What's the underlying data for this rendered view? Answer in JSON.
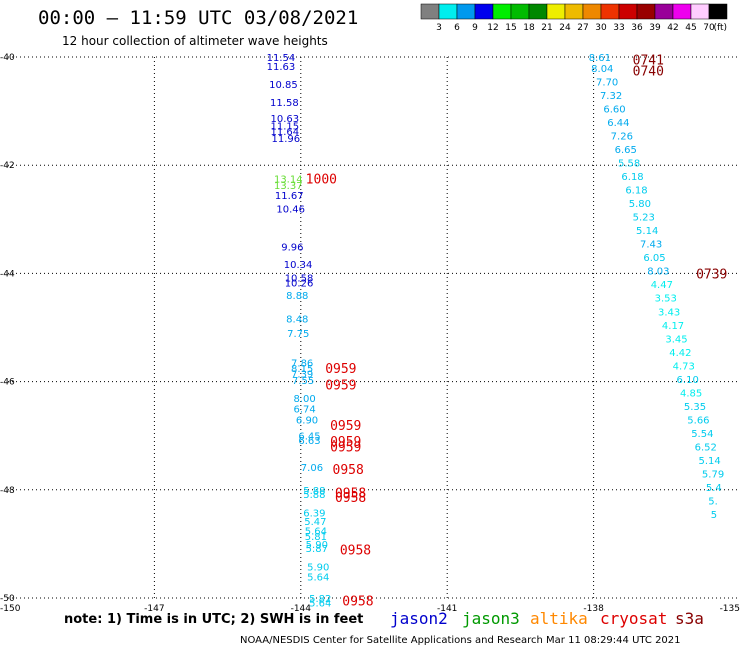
{
  "header": {
    "title": "00:00 – 11:59 UTC 03/08/2021",
    "subtitle": "12 hour collection of altimeter wave heights"
  },
  "footer": {
    "note": "note: 1) Time is in UTC; 2) SWH is in feet",
    "credit": "NOAA/NESDIS Center for Satellite Applications and Research   Mar 11 08:29:44 UTC 2021"
  },
  "satellites": [
    {
      "name": "jason2",
      "color": "#0000cc"
    },
    {
      "name": "jason3",
      "color": "#009900"
    },
    {
      "name": "altika",
      "color": "#ff8800"
    },
    {
      "name": "cryosat",
      "color": "#dd0000"
    },
    {
      "name": "s3a",
      "color": "#880000"
    }
  ],
  "colorbar": {
    "swatches": [
      "#808080",
      "#00eeee",
      "#0099ee",
      "#0000ee",
      "#00ee00",
      "#00bb00",
      "#008800",
      "#eeee00",
      "#eebb00",
      "#ee8800",
      "#ee3300",
      "#cc0000",
      "#990000",
      "#990099",
      "#ee00ee",
      "#ffccff",
      "#000000"
    ],
    "labels": [
      "3",
      "6",
      "9",
      "12",
      "15",
      "18",
      "21",
      "24",
      "27",
      "30",
      "33",
      "36",
      "39",
      "42",
      "45",
      "70"
    ],
    "unit": "(ft)"
  },
  "chart_data": {
    "type": "scatter",
    "title": "00:00 – 11:59 UTC 03/08/2021",
    "xlim": [
      -150,
      -135
    ],
    "ylim": [
      -50,
      -40
    ],
    "x_ticks": [
      "-150",
      "-147",
      "-144",
      "-141",
      "-138",
      "-135"
    ],
    "y_ticks": [
      "-40",
      "-42",
      "-44",
      "-46",
      "-48",
      "-50"
    ],
    "grid": true,
    "legend": "bottom",
    "points": [
      {
        "x": -144.7,
        "y": -40.0,
        "label": "11.54",
        "color": "#0000cc"
      },
      {
        "x": -144.7,
        "y": -40.17,
        "label": "11.63",
        "color": "#0000cc"
      },
      {
        "x": -144.65,
        "y": -40.5,
        "label": "10.85",
        "color": "#0000cc"
      },
      {
        "x": -144.63,
        "y": -40.83,
        "label": "11.58",
        "color": "#0000cc"
      },
      {
        "x": -144.62,
        "y": -41.13,
        "label": "10.63",
        "color": "#0000cc"
      },
      {
        "x": -144.62,
        "y": -41.27,
        "label": "11.15",
        "color": "#0000cc"
      },
      {
        "x": -144.62,
        "y": -41.37,
        "label": "11.64",
        "color": "#0000cc"
      },
      {
        "x": -144.6,
        "y": -41.5,
        "label": "11.96",
        "color": "#0000cc"
      },
      {
        "x": -144.55,
        "y": -42.25,
        "label": "13.14",
        "color": "#66dd33"
      },
      {
        "x": -144.55,
        "y": -42.37,
        "label": "13.37",
        "color": "#66dd33"
      },
      {
        "x": -144.53,
        "y": -42.55,
        "label": "11.67",
        "color": "#0000cc"
      },
      {
        "x": -144.5,
        "y": -42.8,
        "label": "10.46",
        "color": "#0000cc"
      },
      {
        "x": -144.4,
        "y": -43.5,
        "label": "9.96",
        "color": "#0000cc"
      },
      {
        "x": -144.35,
        "y": -43.83,
        "label": "10.34",
        "color": "#0000cc"
      },
      {
        "x": -144.33,
        "y": -44.08,
        "label": "10.58",
        "color": "#0000cc"
      },
      {
        "x": -144.33,
        "y": -44.17,
        "label": "10.26",
        "color": "#0000cc"
      },
      {
        "x": -144.3,
        "y": -44.4,
        "label": "8.88",
        "color": "#00aaee"
      },
      {
        "x": -144.3,
        "y": -44.83,
        "label": "8.48",
        "color": "#00aaee"
      },
      {
        "x": -144.28,
        "y": -45.1,
        "label": "7.75",
        "color": "#00aaee"
      },
      {
        "x": -144.2,
        "y": -45.65,
        "label": "7.86",
        "color": "#00aaee"
      },
      {
        "x": -144.2,
        "y": -45.75,
        "label": "8.15",
        "color": "#00aaee"
      },
      {
        "x": -144.2,
        "y": -45.85,
        "label": "7.39",
        "color": "#00aaee"
      },
      {
        "x": -144.18,
        "y": -45.97,
        "label": "7.55",
        "color": "#00aaee"
      },
      {
        "x": -144.15,
        "y": -46.3,
        "label": "8.00",
        "color": "#00aaee"
      },
      {
        "x": -144.15,
        "y": -46.5,
        "label": "6.74",
        "color": "#00aaee"
      },
      {
        "x": -144.1,
        "y": -46.7,
        "label": "6.90",
        "color": "#00aaee"
      },
      {
        "x": -144.05,
        "y": -47.0,
        "label": "6.45",
        "color": "#00aaee"
      },
      {
        "x": -144.05,
        "y": -47.08,
        "label": "6.63",
        "color": "#00aaee"
      },
      {
        "x": -144.0,
        "y": -47.58,
        "label": "7.06",
        "color": "#00aaee"
      },
      {
        "x": -143.95,
        "y": -48.0,
        "label": "5.88",
        "color": "#00ccee"
      },
      {
        "x": -143.95,
        "y": -48.08,
        "label": "5.88",
        "color": "#00ccee"
      },
      {
        "x": -143.95,
        "y": -48.42,
        "label": "6.39",
        "color": "#00ccee"
      },
      {
        "x": -143.93,
        "y": -48.58,
        "label": "5.47",
        "color": "#00ccee"
      },
      {
        "x": -143.92,
        "y": -48.75,
        "label": "5.64",
        "color": "#00ccee"
      },
      {
        "x": -143.92,
        "y": -48.85,
        "label": "5.81",
        "color": "#00ccee"
      },
      {
        "x": -143.9,
        "y": -49.0,
        "label": "5.90",
        "color": "#00ccee"
      },
      {
        "x": -143.9,
        "y": -49.08,
        "label": "5.87",
        "color": "#00ccee"
      },
      {
        "x": -143.87,
        "y": -49.42,
        "label": "5.90",
        "color": "#00ccee"
      },
      {
        "x": -143.87,
        "y": -49.6,
        "label": "5.64",
        "color": "#00ccee"
      },
      {
        "x": -143.83,
        "y": -50.0,
        "label": "5.82",
        "color": "#00ccee"
      },
      {
        "x": -143.83,
        "y": -50.08,
        "label": "5.64",
        "color": "#00ccee"
      },
      {
        "x": -143.8,
        "y": -50.42,
        "label": "5.93",
        "color": "#00ccee"
      },
      {
        "x": -143.8,
        "y": -50.58,
        "label": "6.32",
        "color": "#00ccee"
      },
      {
        "x": -138.1,
        "y": -40.0,
        "label": "8.61",
        "color": "#00aaee"
      },
      {
        "x": -138.05,
        "y": -40.2,
        "label": "8.04",
        "color": "#00aaee"
      },
      {
        "x": -137.95,
        "y": -40.45,
        "label": "7.70",
        "color": "#00aaee"
      },
      {
        "x": -137.87,
        "y": -40.7,
        "label": "7.32",
        "color": "#00aaee"
      },
      {
        "x": -137.8,
        "y": -40.95,
        "label": "6.60",
        "color": "#00aaee"
      },
      {
        "x": -137.72,
        "y": -41.2,
        "label": "6.44",
        "color": "#00aaee"
      },
      {
        "x": -137.65,
        "y": -41.45,
        "label": "7.26",
        "color": "#00aaee"
      },
      {
        "x": -137.57,
        "y": -41.7,
        "label": "6.65",
        "color": "#00aaee"
      },
      {
        "x": -137.5,
        "y": -41.95,
        "label": "5.58",
        "color": "#00ccee"
      },
      {
        "x": -137.43,
        "y": -42.2,
        "label": "6.18",
        "color": "#00ccee"
      },
      {
        "x": -137.35,
        "y": -42.45,
        "label": "6.18",
        "color": "#00ccee"
      },
      {
        "x": -137.28,
        "y": -42.7,
        "label": "5.80",
        "color": "#00ccee"
      },
      {
        "x": -137.2,
        "y": -42.95,
        "label": "5.23",
        "color": "#00ccee"
      },
      {
        "x": -137.13,
        "y": -43.2,
        "label": "5.14",
        "color": "#00ccee"
      },
      {
        "x": -137.05,
        "y": -43.45,
        "label": "7.43",
        "color": "#00aaee"
      },
      {
        "x": -136.98,
        "y": -43.7,
        "label": "6.05",
        "color": "#00ccee"
      },
      {
        "x": -136.9,
        "y": -43.95,
        "label": "8.03",
        "color": "#00aaee"
      },
      {
        "x": -136.83,
        "y": -44.2,
        "label": "4.47",
        "color": "#00eeee"
      },
      {
        "x": -136.75,
        "y": -44.45,
        "label": "3.53",
        "color": "#00eeee"
      },
      {
        "x": -136.68,
        "y": -44.7,
        "label": "3.43",
        "color": "#00eeee"
      },
      {
        "x": -136.6,
        "y": -44.95,
        "label": "4.17",
        "color": "#00eeee"
      },
      {
        "x": -136.53,
        "y": -45.2,
        "label": "3.45",
        "color": "#00eeee"
      },
      {
        "x": -136.45,
        "y": -45.45,
        "label": "4.42",
        "color": "#00eeee"
      },
      {
        "x": -136.38,
        "y": -45.7,
        "label": "4.73",
        "color": "#00eeee"
      },
      {
        "x": -136.3,
        "y": -45.95,
        "label": "6.10",
        "color": "#00ccee"
      },
      {
        "x": -136.23,
        "y": -46.2,
        "label": "4.85",
        "color": "#00eeee"
      },
      {
        "x": -136.15,
        "y": -46.45,
        "label": "5.35",
        "color": "#00ccee"
      },
      {
        "x": -136.08,
        "y": -46.7,
        "label": "5.66",
        "color": "#00ccee"
      },
      {
        "x": -136.0,
        "y": -46.95,
        "label": "5.54",
        "color": "#00ccee"
      },
      {
        "x": -135.93,
        "y": -47.2,
        "label": "6.52",
        "color": "#00ccee"
      },
      {
        "x": -135.85,
        "y": -47.45,
        "label": "5.14",
        "color": "#00ccee"
      },
      {
        "x": -135.78,
        "y": -47.7,
        "label": "5.79",
        "color": "#00ccee"
      },
      {
        "x": -135.7,
        "y": -47.95,
        "label": "5.4",
        "color": "#00ccee"
      },
      {
        "x": -135.65,
        "y": -48.2,
        "label": "5.",
        "color": "#00ccee"
      },
      {
        "x": -135.6,
        "y": -48.45,
        "label": "5",
        "color": "#00ccee"
      }
    ],
    "time_labels": [
      {
        "x": -143.9,
        "y": -42.25,
        "label": "1000",
        "color": "#dd0000"
      },
      {
        "x": -143.5,
        "y": -45.75,
        "label": "0959",
        "color": "#dd0000"
      },
      {
        "x": -143.5,
        "y": -46.05,
        "label": "0959",
        "color": "#dd0000"
      },
      {
        "x": -143.4,
        "y": -46.8,
        "label": "0959",
        "color": "#dd0000"
      },
      {
        "x": -143.4,
        "y": -47.1,
        "label": "0959",
        "color": "#dd0000"
      },
      {
        "x": -143.4,
        "y": -47.2,
        "label": "0959",
        "color": "#dd0000"
      },
      {
        "x": -143.35,
        "y": -47.62,
        "label": "0958",
        "color": "#dd0000"
      },
      {
        "x": -143.3,
        "y": -48.05,
        "label": "0958",
        "color": "#dd0000"
      },
      {
        "x": -143.3,
        "y": -48.13,
        "label": "0958",
        "color": "#dd0000"
      },
      {
        "x": -143.2,
        "y": -49.1,
        "label": "0958",
        "color": "#dd0000"
      },
      {
        "x": -143.15,
        "y": -50.05,
        "label": "0958",
        "color": "#dd0000"
      },
      {
        "x": -143.1,
        "y": -50.6,
        "label": "0958",
        "color": "#dd0000"
      },
      {
        "x": -137.2,
        "y": -40.05,
        "label": "0741",
        "color": "#880000"
      },
      {
        "x": -137.2,
        "y": -40.25,
        "label": "0740",
        "color": "#880000"
      },
      {
        "x": -135.9,
        "y": -44.0,
        "label": "0739",
        "color": "#880000"
      }
    ]
  }
}
